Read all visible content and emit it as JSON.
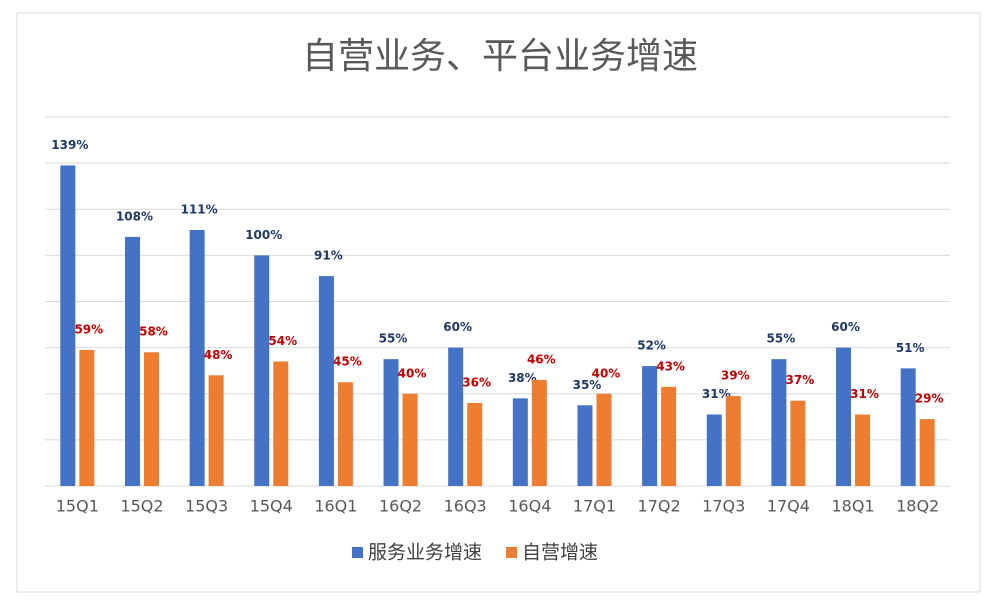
{
  "chart_data": {
    "type": "bar",
    "title": "自营业务、平台业务增速",
    "categories": [
      "15Q1",
      "15Q2",
      "15Q3",
      "15Q4",
      "16Q1",
      "16Q2",
      "16Q3",
      "16Q4",
      "17Q1",
      "17Q2",
      "17Q3",
      "17Q4",
      "18Q1",
      "18Q2"
    ],
    "series": [
      {
        "name": "服务业务增速",
        "color": "#4472c4",
        "label_color": "#1f3864",
        "values": [
          139,
          108,
          111,
          100,
          91,
          55,
          60,
          38,
          35,
          52,
          31,
          55,
          60,
          51
        ],
        "value_labels": [
          "139%",
          "108%",
          "111%",
          "100%",
          "91%",
          "55%",
          "60%",
          "38%",
          "35%",
          "52%",
          "31%",
          "55%",
          "60%",
          "51%"
        ]
      },
      {
        "name": "自营增速",
        "color": "#ed7d31",
        "label_color": "#c00000",
        "values": [
          59,
          58,
          48,
          54,
          45,
          40,
          36,
          46,
          40,
          43,
          39,
          37,
          31,
          29
        ],
        "value_labels": [
          "59%",
          "58%",
          "48%",
          "54%",
          "45%",
          "40%",
          "36%",
          "46%",
          "40%",
          "43%",
          "39%",
          "37%",
          "31%",
          "29%"
        ]
      }
    ],
    "ylim": [
      0,
      160
    ],
    "yticks": [
      0,
      20,
      40,
      60,
      80,
      100,
      120,
      140,
      160
    ],
    "grid": true,
    "legend": "bottom"
  }
}
